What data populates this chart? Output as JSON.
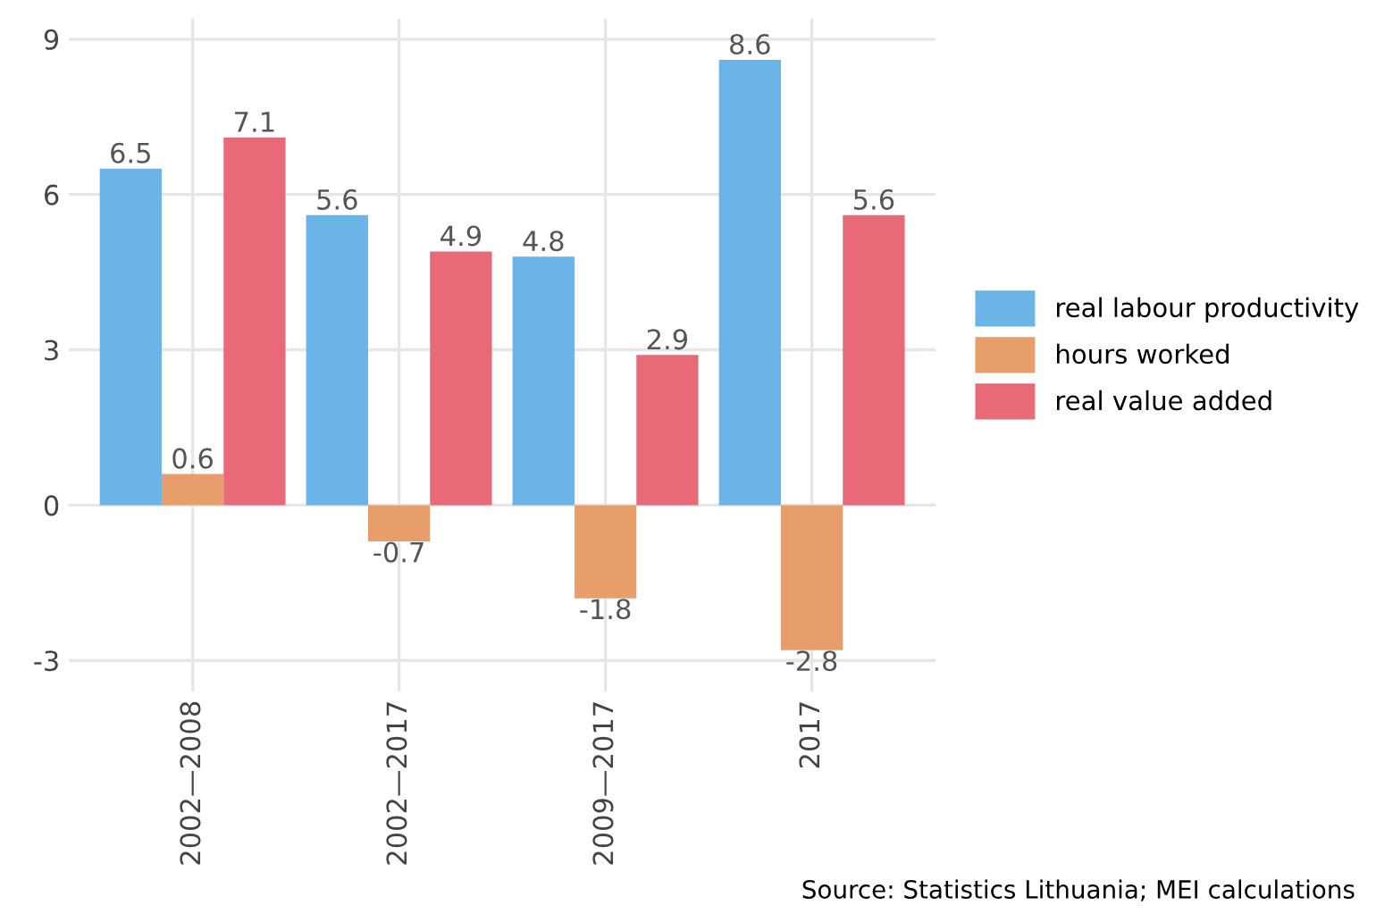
{
  "chart_data": {
    "type": "bar",
    "categories": [
      "2002—2008",
      "2002—2017",
      "2009—2017",
      "2017"
    ],
    "series": [
      {
        "name": "real labour productivity",
        "color": "#6ab4e8",
        "values": [
          6.5,
          5.6,
          4.8,
          8.6
        ]
      },
      {
        "name": "hours worked",
        "color": "#e89e6a",
        "values": [
          0.6,
          -0.7,
          -1.8,
          -2.8
        ]
      },
      {
        "name": "real value added",
        "color": "#e86a78",
        "values": [
          7.1,
          4.9,
          2.9,
          5.6
        ]
      }
    ],
    "ylim": [
      -3.6,
      9.4
    ],
    "yticks": [
      -3,
      0,
      3,
      6,
      9
    ],
    "grid": true,
    "legend": "right",
    "data_labels": true,
    "annotations": [
      "Source: Statistics Lithuania; MEI calculations"
    ]
  }
}
